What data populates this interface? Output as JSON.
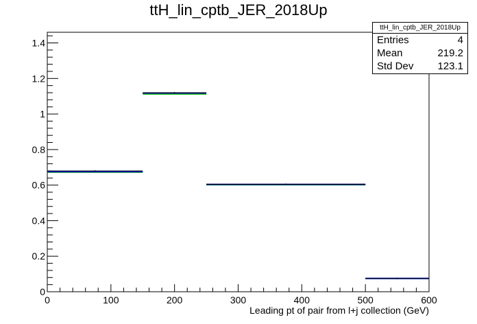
{
  "chart_data": {
    "type": "step-histogram",
    "title": "ttH_lin_cptb_JER_2018Up",
    "xlabel": "Leading pt of pair from l+j collection (GeV)",
    "ylabel": "",
    "xlim": [
      0,
      600
    ],
    "ylim": [
      0,
      1.46
    ],
    "x_ticks": [
      0,
      100,
      200,
      300,
      400,
      500,
      600
    ],
    "y_ticks": [
      0,
      0.2,
      0.4,
      0.6,
      0.8,
      1,
      1.2,
      1.4
    ],
    "x_tick_labels": [
      "0",
      "100",
      "200",
      "300",
      "400",
      "500",
      "600"
    ],
    "y_tick_labels": [
      "0",
      "0.2",
      "0.4",
      "0.6",
      "0.8",
      "1",
      "1.2",
      "1.4"
    ],
    "bin_edges": [
      0,
      150,
      250,
      500,
      600
    ],
    "series": [
      {
        "color": "#000000",
        "values": [
          0.68,
          1.12,
          0.605,
          0.075
        ]
      },
      {
        "color": "#0000cc",
        "values": [
          0.676,
          1.118,
          0.604,
          0.075
        ]
      },
      {
        "color": "#00bb00",
        "values": [
          0.673,
          1.113,
          0.602,
          0.075
        ]
      }
    ],
    "stats": {
      "name": "ttH_lin_cptb_JER_2018Up",
      "rows": [
        {
          "label": "Entries",
          "value": "4"
        },
        {
          "label": "Mean",
          "value": "219.2"
        },
        {
          "label": "Std Dev",
          "value": "123.1"
        }
      ]
    }
  }
}
